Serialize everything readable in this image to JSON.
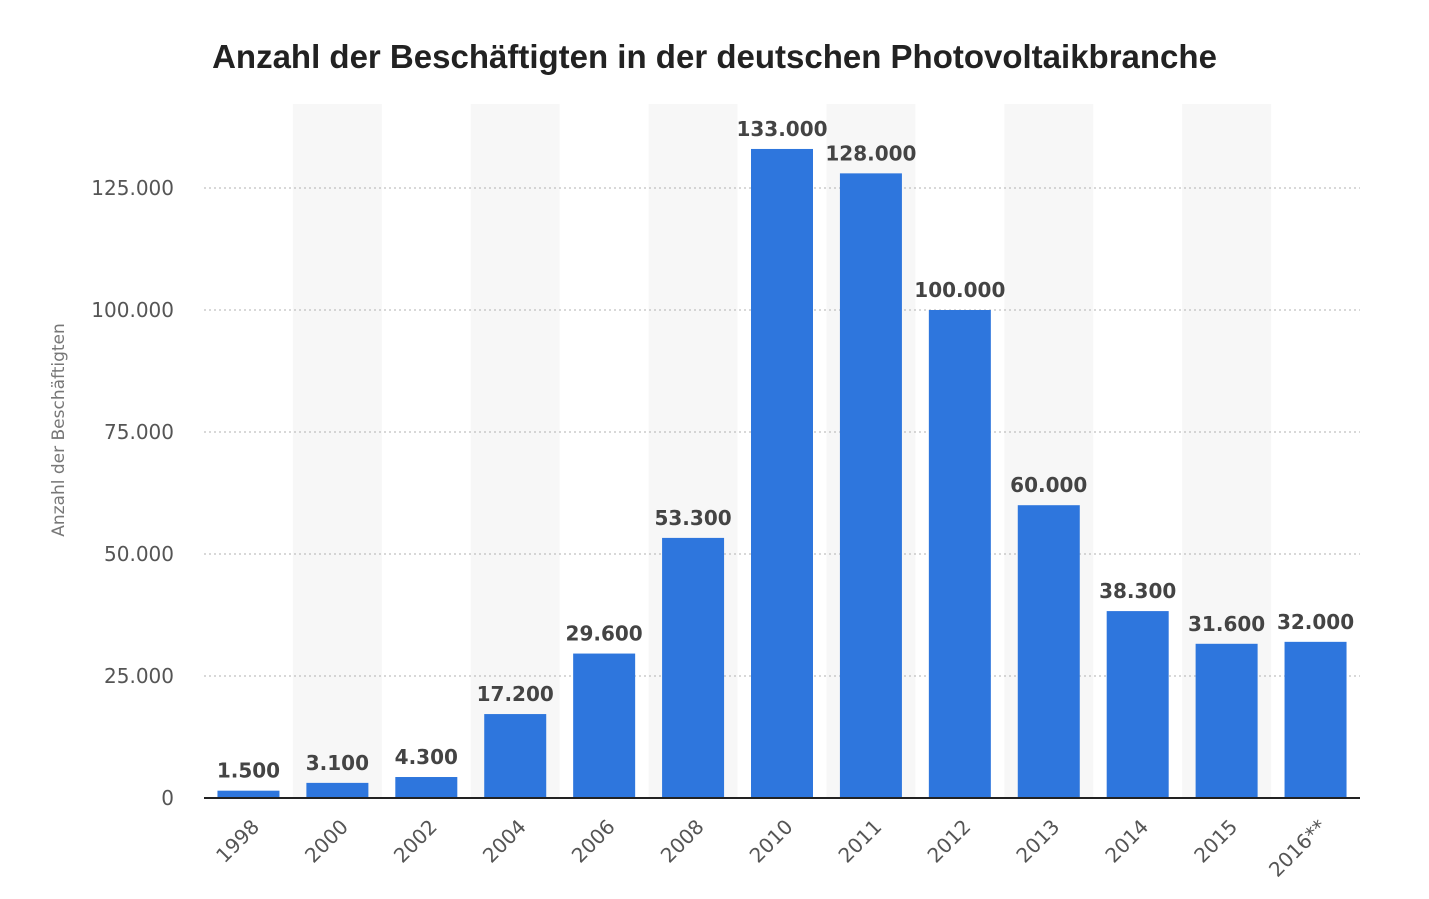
{
  "chart_data": {
    "type": "bar",
    "title": "Anzahl der Beschäftigten in der deutschen Photovoltaikbranche",
    "ylabel": "Anzahl der Beschäftigten",
    "xlabel": "",
    "categories": [
      "1998",
      "2000",
      "2002",
      "2004",
      "2006",
      "2008",
      "2010",
      "2011",
      "2012",
      "2013",
      "2014",
      "2015",
      "2016**"
    ],
    "values": [
      1500,
      3100,
      4300,
      17200,
      29600,
      53300,
      133000,
      128000,
      100000,
      60000,
      38300,
      31600,
      32000
    ],
    "value_labels": [
      "1.500",
      "3.100",
      "4.300",
      "17.200",
      "29.600",
      "53.300",
      "133.000",
      "128.000",
      "100.000",
      "60.000",
      "38.300",
      "31.600",
      "32.000"
    ],
    "ylim": [
      0,
      140000
    ],
    "yticks": [
      0,
      25000,
      50000,
      75000,
      100000,
      125000
    ],
    "ytick_labels": [
      "0",
      "25.000",
      "50.000",
      "75.000",
      "100.000",
      "125.000"
    ],
    "grid": true,
    "bar_color": "#2e76dd",
    "band_color": "#f7f7f7"
  }
}
